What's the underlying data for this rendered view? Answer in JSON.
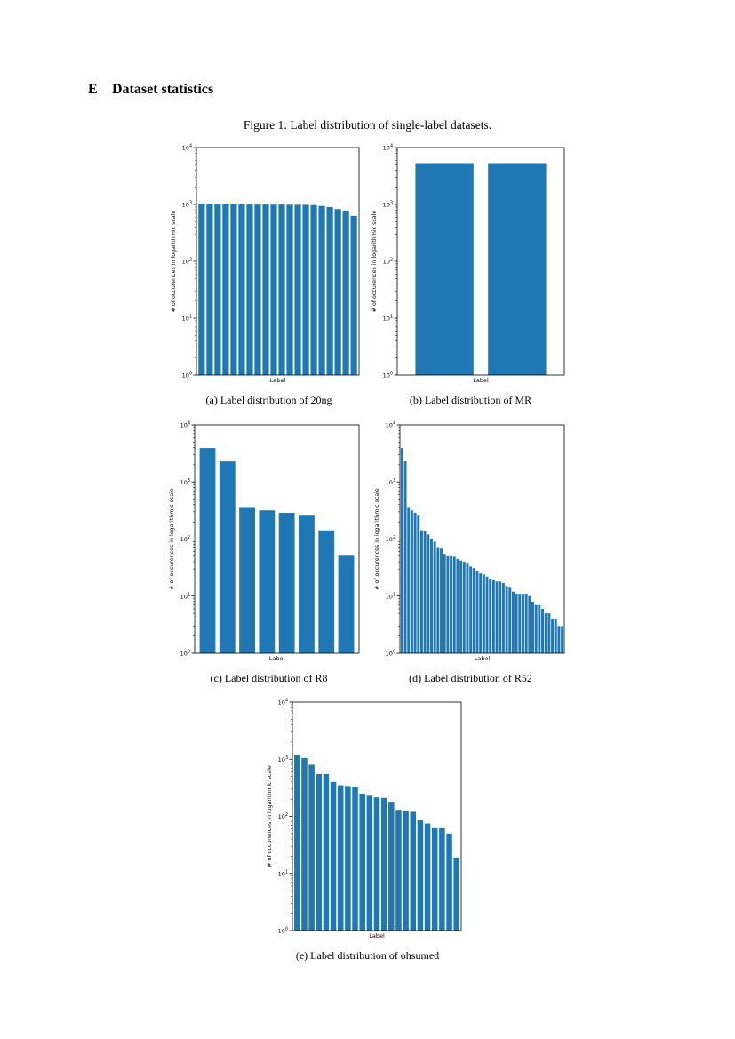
{
  "section": {
    "number": "E",
    "title": "Dataset statistics"
  },
  "figure_caption": "Figure 1: Label distribution of single-label datasets.",
  "chart_data": [
    {
      "id": "20ng",
      "type": "bar",
      "caption": "(a)  Label distribution of 20ng",
      "xlabel": "Label",
      "ylabel": "# of occurences in logarithmic scale",
      "yscale": "log",
      "ylim": [
        1,
        10000
      ],
      "yticks": [
        "10^0",
        "10^1",
        "10^2",
        "10^3",
        "10^4"
      ],
      "values": [
        999,
        999,
        999,
        999,
        999,
        998,
        997,
        996,
        995,
        994,
        993,
        990,
        988,
        985,
        975,
        940,
        900,
        830,
        780,
        630
      ],
      "color": "#1f77b4"
    },
    {
      "id": "MR",
      "type": "bar",
      "caption": "(b)  Label distribution of MR",
      "xlabel": "Label",
      "ylabel": "# of occurences in logarithmic scale",
      "yscale": "log",
      "ylim": [
        1,
        10000
      ],
      "yticks": [
        "10^0",
        "10^1",
        "10^2",
        "10^3",
        "10^4"
      ],
      "values": [
        5331,
        5331
      ],
      "color": "#1f77b4"
    },
    {
      "id": "R8",
      "type": "bar",
      "caption": "(c)  Label distribution of R8",
      "xlabel": "Label",
      "ylabel": "# of occurences in logarithmic scale",
      "yscale": "log",
      "ylim": [
        1,
        10000
      ],
      "yticks": [
        "10^0",
        "10^1",
        "10^2",
        "10^3",
        "10^4"
      ],
      "values": [
        3923,
        2292,
        364,
        318,
        288,
        266,
        142,
        51
      ],
      "color": "#1f77b4"
    },
    {
      "id": "R52",
      "type": "bar",
      "caption": "(d)  Label distribution of R52",
      "xlabel": "Label",
      "ylabel": "# of occurences in logarithmic scale",
      "yscale": "log",
      "ylim": [
        1,
        10000
      ],
      "yticks": [
        "10^0",
        "10^1",
        "10^2",
        "10^3",
        "10^4"
      ],
      "values": [
        3923,
        2292,
        364,
        318,
        288,
        266,
        142,
        140,
        120,
        100,
        90,
        70,
        68,
        55,
        50,
        50,
        49,
        45,
        42,
        40,
        37,
        33,
        31,
        28,
        25,
        24,
        22,
        20,
        19,
        18,
        18,
        17,
        15,
        14,
        12,
        11,
        11,
        11,
        11,
        10,
        8,
        7,
        7,
        6,
        5,
        5,
        4,
        4,
        3,
        3
      ],
      "color": "#1f77b4"
    },
    {
      "id": "ohsumed",
      "type": "bar",
      "caption": "(e)  Label distribution of ohsumed",
      "xlabel": "Label",
      "ylabel": "# of occurences in logarithmic scale",
      "yscale": "log",
      "ylim": [
        1,
        10000
      ],
      "yticks": [
        "10^0",
        "10^1",
        "10^2",
        "10^3",
        "10^4"
      ],
      "values": [
        1200,
        1050,
        800,
        550,
        550,
        400,
        350,
        340,
        330,
        250,
        230,
        215,
        210,
        180,
        130,
        125,
        120,
        85,
        75,
        62,
        62,
        50,
        19
      ],
      "color": "#1f77b4"
    }
  ]
}
